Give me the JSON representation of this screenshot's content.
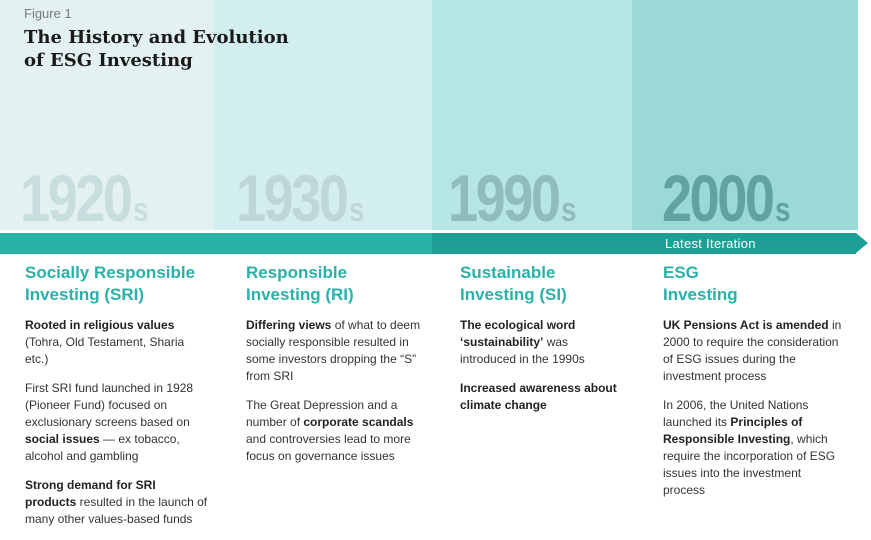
{
  "figure": {
    "label": "Figure 1",
    "title_lines": [
      "The History and Evolution",
      "of ESG Investing"
    ]
  },
  "timeline": {
    "latest_label": "Latest Iteration",
    "columns": [
      {
        "decade": "1920",
        "suffix": "s",
        "heading_lines": [
          "Socially Responsible",
          "Investing (SRI)"
        ],
        "paragraphs": [
          [
            {
              "text": "Rooted in religious values",
              "bold": true
            },
            {
              "text": " (Tohra, Old Testament, Sharia etc.)",
              "bold": false
            }
          ],
          [
            {
              "text": "First SRI fund launched in 1928 (Pioneer Fund) focused on exclusionary screens based on ",
              "bold": false
            },
            {
              "text": "social issues",
              "bold": true
            },
            {
              "text": " — ex tobacco, alcohol and gambling",
              "bold": false
            }
          ],
          [
            {
              "text": "Strong demand for SRI products",
              "bold": true
            },
            {
              "text": " resulted in the launch of many other values-based funds",
              "bold": false
            }
          ]
        ]
      },
      {
        "decade": "1930",
        "suffix": "s",
        "heading_lines": [
          "Responsible",
          "Investing (RI)"
        ],
        "paragraphs": [
          [
            {
              "text": "Differing views",
              "bold": true
            },
            {
              "text": " of what to deem socially responsible resulted in some investors dropping the “S” from SRI",
              "bold": false
            }
          ],
          [
            {
              "text": "The Great Depression and a number of ",
              "bold": false
            },
            {
              "text": "corporate scandals",
              "bold": true
            },
            {
              "text": " and controversies lead to more focus on governance issues",
              "bold": false
            }
          ]
        ]
      },
      {
        "decade": "1990",
        "suffix": "s",
        "heading_lines": [
          "Sustainable",
          "Investing (SI)"
        ],
        "paragraphs": [
          [
            {
              "text": "The ecological word ‘sustainability’",
              "bold": true
            },
            {
              "text": " was introduced in the 1990s",
              "bold": false
            }
          ],
          [
            {
              "text": "Increased awareness about climate change",
              "bold": true
            }
          ]
        ]
      },
      {
        "decade": "2000",
        "suffix": "s",
        "heading_lines": [
          "ESG",
          "Investing"
        ],
        "paragraphs": [
          [
            {
              "text": "UK Pensions Act is amended",
              "bold": true
            },
            {
              "text": " in 2000 to require the consideration of ESG issues during the investment process",
              "bold": false
            }
          ],
          [
            {
              "text": "In 2006, the United Nations launched its ",
              "bold": false
            },
            {
              "text": "Principles of Responsible Investing",
              "bold": true
            },
            {
              "text": ", which require the incorporation of ESG issues into the investment process",
              "bold": false
            }
          ]
        ]
      }
    ]
  }
}
